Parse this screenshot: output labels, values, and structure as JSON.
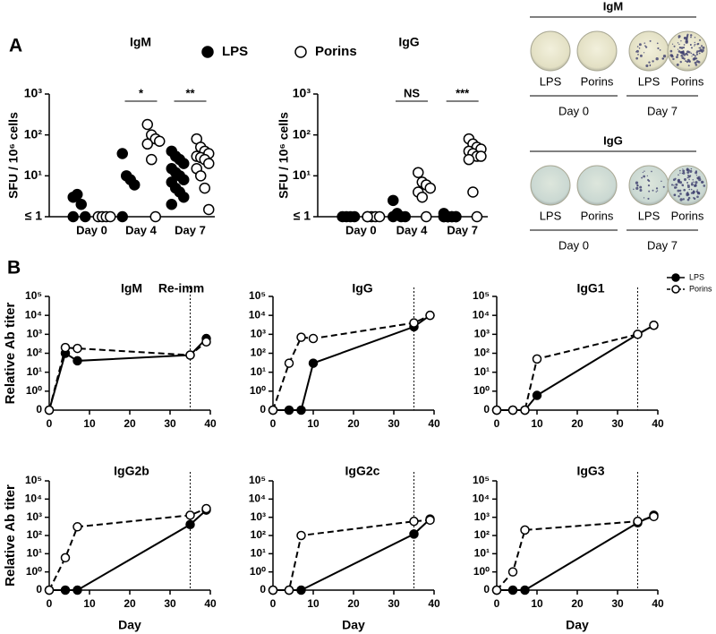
{
  "panel_labels": [
    "A",
    "B"
  ],
  "chart_data": [
    {
      "type": "dot",
      "title": "IgM",
      "ylabel": "SFU / 10⁶ cells",
      "yscale": "log",
      "categories": [
        "Day 0",
        "Day 4",
        "Day 7"
      ],
      "significance": [
        null,
        "*",
        "**"
      ],
      "ylim": [
        1,
        1000
      ],
      "yticks": [
        {
          "value": 1,
          "label": "≤ 1"
        },
        {
          "value": 10,
          "label": "10¹"
        },
        {
          "value": 100,
          "label": "10²"
        },
        {
          "value": 1000,
          "label": "10³"
        }
      ],
      "series": [
        {
          "name": "LPS",
          "color": "#000000",
          "marker": "filled",
          "values": [
            [
              3,
              3.5,
              2,
              1,
              1
            ],
            [
              35,
              10,
              8,
              6,
              1
            ],
            [
              40,
              30,
              25,
              20,
              15,
              12,
              10,
              8,
              7,
              5,
              4,
              3,
              2
            ]
          ]
        },
        {
          "name": "Porins",
          "color": "#000000",
          "marker": "open",
          "values": [
            [
              1,
              1,
              1,
              1
            ],
            [
              180,
              100,
              80,
              70,
              60,
              25,
              1
            ],
            [
              80,
              50,
              40,
              35,
              30,
              28,
              25,
              20,
              15,
              10,
              5,
              1.5
            ]
          ]
        }
      ]
    },
    {
      "type": "dot",
      "title": "IgG",
      "ylabel": "SFU / 10⁶ cells",
      "yscale": "log",
      "categories": [
        "Day 0",
        "Day 4",
        "Day 7"
      ],
      "significance": [
        null,
        "NS",
        "***"
      ],
      "ylim": [
        1,
        1000
      ],
      "yticks": [
        {
          "value": 1,
          "label": "≤ 1"
        },
        {
          "value": 10,
          "label": "10¹"
        },
        {
          "value": 100,
          "label": "10²"
        },
        {
          "value": 1000,
          "label": "10³"
        }
      ],
      "series": [
        {
          "color": "#000000",
          "marker": "filled",
          "values": [
            [
              1,
              1,
              1,
              1
            ],
            [
              2.5,
              1.2,
              1,
              1,
              1
            ],
            [
              1.2,
              1,
              1,
              1,
              1,
              1,
              1,
              1,
              1,
              1
            ]
          ]
        },
        {
          "color": "#000000",
          "marker": "open",
          "values": [
            [
              1,
              1,
              1,
              1,
              1
            ],
            [
              12,
              7,
              6,
              5,
              4,
              3,
              1
            ],
            [
              80,
              60,
              50,
              45,
              40,
              35,
              30,
              30,
              25,
              4,
              1
            ]
          ]
        }
      ]
    },
    {
      "type": "line",
      "title": "IgM",
      "ylabel": "Relative Ab titer",
      "annotation": "Re-imm",
      "vline": 35,
      "yscale": "log",
      "xlim": [
        0,
        40
      ],
      "xticks": [
        0,
        10,
        20,
        30,
        40
      ],
      "ylim": [
        0,
        100000
      ],
      "yticks": [
        {
          "value": 0,
          "label": "0"
        },
        {
          "value": 1,
          "label": "10⁰"
        },
        {
          "value": 10,
          "label": "10¹"
        },
        {
          "value": 100,
          "label": "10²"
        },
        {
          "value": 1000,
          "label": "10³"
        },
        {
          "value": 10000,
          "label": "10⁴"
        },
        {
          "value": 100000,
          "label": "10⁵"
        }
      ],
      "series": [
        {
          "name": "LPS",
          "color": "#000000",
          "marker": "filled",
          "line_style": "solid",
          "x": [
            0,
            4,
            7,
            35,
            39
          ],
          "values": [
            0,
            100,
            40,
            80,
            600
          ]
        },
        {
          "name": "Porins",
          "color": "#000000",
          "marker": "open",
          "line_style": "dashed",
          "x": [
            0,
            4,
            7,
            35,
            39
          ],
          "values": [
            0,
            200,
            180,
            80,
            400
          ]
        }
      ]
    },
    {
      "type": "line",
      "title": "IgG",
      "vline": 35,
      "yscale": "log",
      "xlim": [
        0,
        40
      ],
      "xticks": [
        0,
        10,
        20,
        30,
        40
      ],
      "ylim": [
        0,
        100000
      ],
      "yticks": [
        {
          "value": 0,
          "label": "0"
        },
        {
          "value": 1,
          "label": "10⁰"
        },
        {
          "value": 10,
          "label": "10¹"
        },
        {
          "value": 100,
          "label": "10²"
        },
        {
          "value": 1000,
          "label": "10³"
        },
        {
          "value": 10000,
          "label": "10⁴"
        },
        {
          "value": 100000,
          "label": "10⁵"
        }
      ],
      "series": [
        {
          "color": "#000000",
          "marker": "filled",
          "line_style": "solid",
          "x": [
            0,
            4,
            7,
            10,
            35,
            39
          ],
          "values": [
            0,
            0,
            0,
            30,
            2500,
            10000
          ]
        },
        {
          "color": "#000000",
          "marker": "open",
          "line_style": "dashed",
          "x": [
            0,
            4,
            7,
            10,
            35,
            39
          ],
          "values": [
            0,
            30,
            700,
            600,
            4000,
            10000
          ]
        }
      ]
    },
    {
      "type": "line",
      "title": "IgG1",
      "vline": 35,
      "yscale": "log",
      "xlim": [
        0,
        40
      ],
      "xticks": [
        0,
        10,
        20,
        30,
        40
      ],
      "ylim": [
        0,
        100000
      ],
      "yticks": [
        {
          "value": 0,
          "label": "0"
        },
        {
          "value": 1,
          "label": "10⁰"
        },
        {
          "value": 10,
          "label": "10¹"
        },
        {
          "value": 100,
          "label": "10²"
        },
        {
          "value": 1000,
          "label": "10³"
        },
        {
          "value": 10000,
          "label": "10⁴"
        },
        {
          "value": 100000,
          "label": "10⁵"
        }
      ],
      "series": [
        {
          "color": "#000000",
          "marker": "filled",
          "line_style": "solid",
          "x": [
            0,
            4,
            7,
            10,
            35,
            39
          ],
          "values": [
            0,
            0,
            0,
            0.6,
            1000,
            3000
          ]
        },
        {
          "color": "#000000",
          "marker": "open",
          "line_style": "dashed",
          "x": [
            0,
            4,
            7,
            10,
            35,
            39
          ],
          "values": [
            0,
            0,
            0,
            50,
            1000,
            3000
          ]
        }
      ]
    },
    {
      "type": "line",
      "title": "IgG2b",
      "ylabel": "Relative Ab titer",
      "xlabel": "Day",
      "vline": 35,
      "yscale": "log",
      "xlim": [
        0,
        40
      ],
      "xticks": [
        0,
        10,
        20,
        30,
        40
      ],
      "ylim": [
        0,
        100000
      ],
      "yticks": [
        {
          "value": 0,
          "label": "0"
        },
        {
          "value": 1,
          "label": "10⁰"
        },
        {
          "value": 10,
          "label": "10¹"
        },
        {
          "value": 100,
          "label": "10²"
        },
        {
          "value": 1000,
          "label": "10³"
        },
        {
          "value": 10000,
          "label": "10⁴"
        },
        {
          "value": 100000,
          "label": "10⁵"
        }
      ],
      "series": [
        {
          "color": "#000000",
          "marker": "filled",
          "line_style": "solid",
          "x": [
            0,
            4,
            7,
            35,
            39
          ],
          "values": [
            0,
            0,
            0,
            400,
            2500
          ]
        },
        {
          "color": "#000000",
          "marker": "open",
          "line_style": "dashed",
          "x": [
            0,
            4,
            7,
            35,
            39
          ],
          "values": [
            0,
            6,
            300,
            1300,
            3000
          ]
        }
      ]
    },
    {
      "type": "line",
      "title": "IgG2c",
      "xlabel": "Day",
      "vline": 35,
      "yscale": "log",
      "xlim": [
        0,
        40
      ],
      "xticks": [
        0,
        10,
        20,
        30,
        40
      ],
      "ylim": [
        0,
        100000
      ],
      "yticks": [
        {
          "value": 0,
          "label": "0"
        },
        {
          "value": 1,
          "label": "10⁰"
        },
        {
          "value": 10,
          "label": "10¹"
        },
        {
          "value": 100,
          "label": "10²"
        },
        {
          "value": 1000,
          "label": "10³"
        },
        {
          "value": 10000,
          "label": "10⁴"
        },
        {
          "value": 100000,
          "label": "10⁵"
        }
      ],
      "series": [
        {
          "color": "#000000",
          "marker": "filled",
          "line_style": "solid",
          "x": [
            0,
            4,
            7,
            35,
            39
          ],
          "values": [
            0,
            0,
            0,
            120,
            800
          ]
        },
        {
          "color": "#000000",
          "marker": "open",
          "line_style": "dashed",
          "x": [
            0,
            4,
            7,
            35,
            39
          ],
          "values": [
            0,
            0,
            100,
            600,
            700
          ]
        }
      ]
    },
    {
      "type": "line",
      "title": "IgG3",
      "xlabel": "Day",
      "vline": 35,
      "yscale": "log",
      "xlim": [
        0,
        40
      ],
      "xticks": [
        0,
        10,
        20,
        30,
        40
      ],
      "ylim": [
        0,
        100000
      ],
      "yticks": [
        {
          "value": 0,
          "label": "0"
        },
        {
          "value": 1,
          "label": "10⁰"
        },
        {
          "value": 10,
          "label": "10¹"
        },
        {
          "value": 100,
          "label": "10²"
        },
        {
          "value": 1000,
          "label": "10³"
        },
        {
          "value": 10000,
          "label": "10⁴"
        },
        {
          "value": 100000,
          "label": "10⁵"
        }
      ],
      "series": [
        {
          "color": "#000000",
          "marker": "filled",
          "line_style": "solid",
          "x": [
            0,
            4,
            7,
            35,
            39
          ],
          "values": [
            0,
            0,
            0,
            500,
            1300
          ]
        },
        {
          "color": "#000000",
          "marker": "open",
          "line_style": "dashed",
          "x": [
            0,
            4,
            7,
            35,
            39
          ],
          "values": [
            0,
            1,
            200,
            600,
            1100
          ]
        }
      ]
    }
  ],
  "plates": [
    {
      "title": "IgM",
      "labels": [
        "LPS",
        "Porins",
        "LPS",
        "Porins"
      ],
      "days": [
        "Day 0",
        "Day 7"
      ]
    },
    {
      "title": "IgG",
      "labels": [
        "LPS",
        "Porins",
        "LPS",
        "Porins"
      ],
      "days": [
        "Day 0",
        "Day 7"
      ]
    }
  ]
}
